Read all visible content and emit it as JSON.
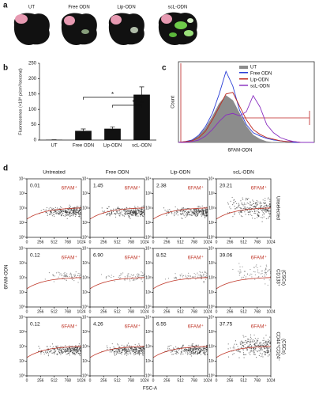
{
  "panel_labels": [
    "a",
    "b",
    "c",
    "d"
  ],
  "panel_a": {
    "labels": [
      "UT",
      "Free ODN",
      "Lip-ODN",
      "scL-ODN"
    ]
  },
  "chart_data": [
    {
      "type": "bar",
      "ylabel": "Fluorescence (×10⁸ p/cm²/second)",
      "categories": [
        "UT",
        "Free ODN",
        "Lip-ODN",
        "scL-ODN"
      ],
      "values": [
        1,
        30,
        37,
        148
      ],
      "errors": [
        0,
        6,
        6,
        25
      ],
      "color": "#111111",
      "ylim": [
        0,
        250
      ],
      "yticks": [
        0,
        50,
        100,
        150,
        200,
        250
      ],
      "significance": [
        {
          "label": "*",
          "pair": [
            "Free ODN",
            "scL-ODN"
          ]
        },
        {
          "label": "*",
          "pair": [
            "Lip-ODN",
            "scL-ODN"
          ]
        }
      ]
    },
    {
      "type": "line",
      "xlabel": "6FAM-ODN",
      "ylabel": "Count",
      "legend": "upper right",
      "x": [
        0,
        5,
        10,
        15,
        20,
        25,
        30,
        35,
        40,
        45,
        50,
        55,
        60,
        65,
        70,
        75,
        80,
        85,
        90,
        95,
        100
      ],
      "xlim": [
        0,
        100
      ],
      "ylim": [
        0,
        100
      ],
      "series": [
        {
          "name": "UT",
          "color": "#8c8c8c",
          "fill": true,
          "values": [
            0,
            1,
            3,
            8,
            18,
            32,
            48,
            58,
            52,
            36,
            20,
            9,
            4,
            1,
            0,
            0,
            0,
            0,
            0,
            0,
            0
          ]
        },
        {
          "name": "Free ODN",
          "color": "#2b3fd6",
          "fill": false,
          "values": [
            0,
            1,
            3,
            9,
            20,
            36,
            60,
            88,
            70,
            40,
            22,
            12,
            8,
            5,
            3,
            2,
            1,
            0,
            0,
            0,
            0
          ]
        },
        {
          "name": "Lip-ODN",
          "color": "#c0281e",
          "fill": false,
          "values": [
            0,
            1,
            2,
            6,
            14,
            28,
            44,
            60,
            62,
            45,
            28,
            16,
            10,
            6,
            4,
            2,
            1,
            1,
            0,
            0,
            0
          ]
        },
        {
          "name": "scL-ODN",
          "color": "#8a2fc0",
          "fill": false,
          "values": [
            0,
            0,
            1,
            3,
            8,
            16,
            26,
            34,
            36,
            33,
            38,
            58,
            44,
            22,
            12,
            6,
            3,
            1,
            0,
            0,
            0
          ]
        }
      ]
    },
    {
      "type": "scatter",
      "xlabel": "FSC-A",
      "ylabel": "6FAM-ODN",
      "columns": [
        "Untreated",
        "Free ODN",
        "Lip-ODN",
        "scL-ODN"
      ],
      "row_labels": [
        [
          "Unselected"
        ],
        [
          "CD133⁺",
          "(CSCs)"
        ],
        [
          "CD44⁺CD24⁻",
          "(CSCs)"
        ]
      ],
      "gate_label": "6FAM⁺",
      "gate_color": "#c0392b",
      "gate_percentages": [
        [
          "0.01",
          "1.45",
          "2.38",
          "20.21"
        ],
        [
          "0.12",
          "6.90",
          "8.52",
          "39.06"
        ],
        [
          "0.12",
          "4.26",
          "6.55",
          "37.75"
        ]
      ],
      "xlim": [
        0,
        1024
      ],
      "xticks": [
        0,
        256,
        512,
        768,
        1024
      ],
      "ylim": [
        1,
        10000
      ],
      "log_y": true,
      "yticks": [
        {
          "value": 1,
          "label": "10⁰"
        },
        {
          "value": 10,
          "label": "10¹"
        },
        {
          "value": 100,
          "label": "10²"
        },
        {
          "value": 1000,
          "label": "10³"
        },
        {
          "value": 10000,
          "label": "10⁴"
        }
      ]
    }
  ]
}
